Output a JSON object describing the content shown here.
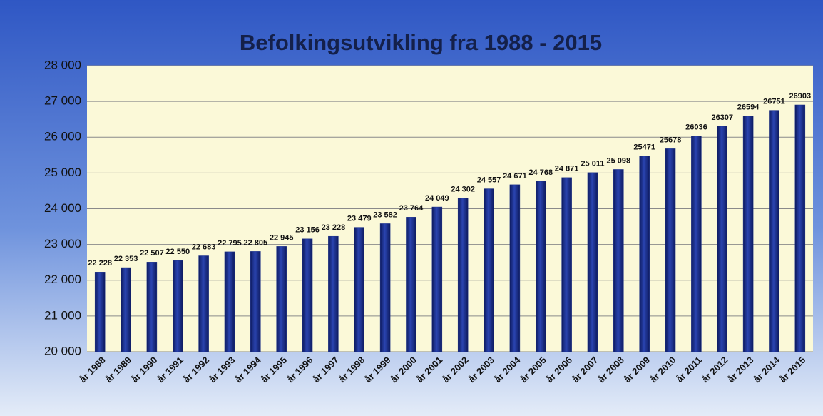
{
  "chart_data": {
    "type": "bar",
    "title": "Befolkingsutvikling fra 1988 - 2015",
    "categories": [
      "år 1988",
      "år 1989",
      "år 1990",
      "år 1991",
      "år 1992",
      "år 1993",
      "år 1994",
      "år 1995",
      "år 1996",
      "år 1997",
      "år 1998",
      "år 1999",
      "år 2000",
      "år 2001",
      "år 2002",
      "år 2003",
      "år 2004",
      "år 2005",
      "år 2006",
      "år 2007",
      "år 2008",
      "år 2009",
      "år 2010",
      "år 2011",
      "år 2012",
      "år 2013",
      "år 2014",
      "år 2015"
    ],
    "values": [
      22228,
      22353,
      22507,
      22550,
      22683,
      22795,
      22805,
      22945,
      23156,
      23228,
      23479,
      23582,
      23764,
      24049,
      24302,
      24557,
      24671,
      24768,
      24871,
      25011,
      25098,
      25471,
      25678,
      26036,
      26307,
      26594,
      26751,
      26903
    ],
    "value_labels": [
      "22 228",
      "22 353",
      "22 507",
      "22 550",
      "22 683",
      "22 795",
      "22 805",
      "22 945",
      "23 156",
      "23 228",
      "23 479",
      "23 582",
      "23 764",
      "24 049",
      "24 302",
      "24 557",
      "24 671",
      "24 768",
      "24 871",
      "25 011",
      "25 098",
      "25471",
      "25678",
      "26036",
      "26307",
      "26594",
      "26751",
      "26903"
    ],
    "color": "#1a2f8a",
    "ylim": [
      20000,
      28000
    ],
    "yticks": [
      {
        "value": 20000,
        "label": "20 000"
      },
      {
        "value": 21000,
        "label": "21 000"
      },
      {
        "value": 22000,
        "label": "22 000"
      },
      {
        "value": 23000,
        "label": "23 000"
      },
      {
        "value": 24000,
        "label": "24 000"
      },
      {
        "value": 25000,
        "label": "25 000"
      },
      {
        "value": 26000,
        "label": "26 000"
      },
      {
        "value": 27000,
        "label": "27 000"
      },
      {
        "value": 28000,
        "label": "28 000"
      }
    ],
    "grid": true
  }
}
